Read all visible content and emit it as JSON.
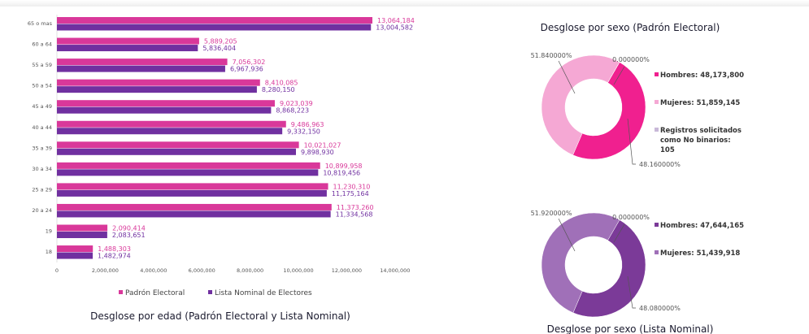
{
  "colors": {
    "padron": "#d9389a",
    "lista": "#7030a0",
    "hombres_padron": "#f0208f",
    "mujeres_padron": "#f5a8d4",
    "nobinario": "#c8b8d8",
    "hombres_lista": "#7b3a98",
    "mujeres_lista": "#a070b8"
  },
  "chart_data": [
    {
      "type": "bar",
      "orientation": "horizontal",
      "title": "Desglose por edad (Padrón Electoral y Lista Nominal)",
      "categories": [
        "65 o mas",
        "60 a 64",
        "55 a 59",
        "50 a 54",
        "45 a 49",
        "40 a 44",
        "35 a 39",
        "30 a 34",
        "25 a 29",
        "20 a 24",
        "19",
        "18"
      ],
      "series": [
        {
          "name": "Padrón Electoral",
          "values": [
            13064184,
            5889205,
            7056302,
            8410085,
            9023039,
            9486963,
            10021027,
            10899958,
            11230310,
            11373260,
            2090414,
            1488303
          ],
          "labels": [
            "13,064,184",
            "5,889,205",
            "7,056,302",
            "8,410,085",
            "9,023,039",
            "9,486,963",
            "10,021,027",
            "10,899,958",
            "11,230,310",
            "11,373,260",
            "2,090,414",
            "1,488,303"
          ]
        },
        {
          "name": "Lista Nominal de Electores",
          "values": [
            13004582,
            5836404,
            6967936,
            8280150,
            8868223,
            9332150,
            9898930,
            10819456,
            11175164,
            11334568,
            2083651,
            1482974
          ],
          "labels": [
            "13,004,582",
            "5,836,404",
            "6,967,936",
            "8,280,150",
            "8,868,223",
            "9,332,150",
            "9,898,930",
            "10,819,456",
            "11,175,164",
            "11,334,568",
            "2,083,651",
            "1,482,974"
          ]
        }
      ],
      "xlim": [
        0,
        14000000
      ],
      "xticks": [
        "0",
        "2,000,000",
        "4,000,000",
        "6,000,000",
        "8,000,000",
        "10,000,000",
        "12,000,000",
        "14,000,000"
      ],
      "legend": "bottom"
    },
    {
      "type": "pie",
      "donut": true,
      "title": "Desglose por sexo (Padrón Electoral)",
      "slices": [
        {
          "name": "Hombres",
          "value": 48173800,
          "legend": "Hombres: 48,173,800",
          "pct_label": "48.160000%"
        },
        {
          "name": "Mujeres",
          "value": 51859145,
          "legend": "Mujeres: 51,859,145",
          "pct_label": "51.840000%"
        },
        {
          "name": "Registros solicitados como No binarios",
          "value": 105,
          "legend": "Registros solicitados como No binarios: 105",
          "pct_label": "0.000000%"
        }
      ],
      "legend": "right"
    },
    {
      "type": "pie",
      "donut": true,
      "title": "Desglose por sexo (Lista Nominal)",
      "slices": [
        {
          "name": "Hombres",
          "value": 47644165,
          "legend": "Hombres: 47,644,165",
          "pct_label": "48.080000%"
        },
        {
          "name": "Mujeres",
          "value": 51439918,
          "legend": "Mujeres: 51,439,918",
          "pct_label": "51.920000%"
        },
        {
          "name": "",
          "value": 0,
          "legend": "",
          "pct_label": "0.000000%"
        }
      ],
      "legend": "right"
    }
  ]
}
